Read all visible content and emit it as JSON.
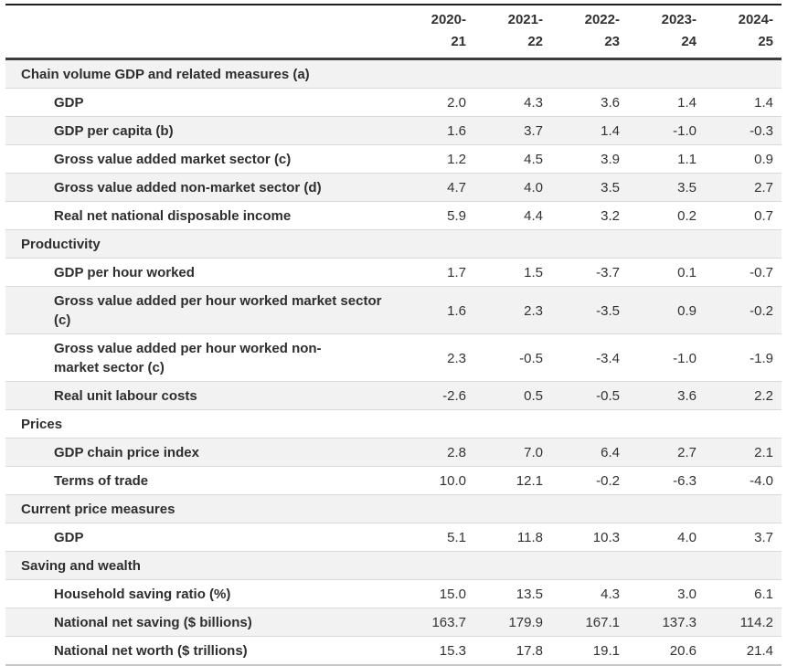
{
  "colors": {
    "top_rule": "#1f1f1f",
    "header_rule": "#3d3d3d",
    "row_divider": "#d9d9d9",
    "stripe_band": "#f2f2f2",
    "bottom_rule": "#c6c6c6",
    "text": "#333333"
  },
  "chart_data": {
    "type": "table",
    "columns": [
      "2020-21",
      "2021-22",
      "2022-23",
      "2023-24",
      "2024-25"
    ],
    "column_display": [
      "2020-\n21",
      "2021-\n22",
      "2022-\n23",
      "2023-\n24",
      "2024-\n25"
    ],
    "rows": [
      {
        "type": "section",
        "label": "Chain volume GDP and related measures (a)"
      },
      {
        "type": "data",
        "label": "GDP",
        "values": [
          "2.0",
          "4.3",
          "3.6",
          "1.4",
          "1.4"
        ]
      },
      {
        "type": "data",
        "label": "GDP per capita (b)",
        "values": [
          "1.6",
          "3.7",
          "1.4",
          "-1.0",
          "-0.3"
        ]
      },
      {
        "type": "data",
        "label": "Gross value added market sector (c)",
        "values": [
          "1.2",
          "4.5",
          "3.9",
          "1.1",
          "0.9"
        ]
      },
      {
        "type": "data",
        "label": "Gross value added non-market sector (d)",
        "values": [
          "4.7",
          "4.0",
          "3.5",
          "3.5",
          "2.7"
        ]
      },
      {
        "type": "data",
        "label": "Real net national disposable income",
        "values": [
          "5.9",
          "4.4",
          "3.2",
          "0.2",
          "0.7"
        ]
      },
      {
        "type": "section",
        "label": "Productivity"
      },
      {
        "type": "data",
        "label": "GDP per hour worked",
        "values": [
          "1.7",
          "1.5",
          "-3.7",
          "0.1",
          "-0.7"
        ]
      },
      {
        "type": "data",
        "label": "Gross value added per hour worked market sector (c)",
        "values": [
          "1.6",
          "2.3",
          "-3.5",
          "0.9",
          "-0.2"
        ]
      },
      {
        "type": "data",
        "label": "Gross value added per hour worked non-\nmarket sector (c)",
        "values": [
          "2.3",
          "-0.5",
          "-3.4",
          "-1.0",
          "-1.9"
        ]
      },
      {
        "type": "data",
        "label": "Real unit labour costs",
        "values": [
          "-2.6",
          "0.5",
          "-0.5",
          "3.6",
          "2.2"
        ]
      },
      {
        "type": "section",
        "label": "Prices"
      },
      {
        "type": "data",
        "label": "GDP chain price index",
        "values": [
          "2.8",
          "7.0",
          "6.4",
          "2.7",
          "2.1"
        ]
      },
      {
        "type": "data",
        "label": "Terms of trade",
        "values": [
          "10.0",
          "12.1",
          "-0.2",
          "-6.3",
          "-4.0"
        ]
      },
      {
        "type": "section",
        "label": "Current price measures"
      },
      {
        "type": "data",
        "label": "GDP",
        "values": [
          "5.1",
          "11.8",
          "10.3",
          "4.0",
          "3.7"
        ]
      },
      {
        "type": "section",
        "label": "Saving and wealth"
      },
      {
        "type": "data",
        "label": "Household saving ratio (%)",
        "values": [
          "15.0",
          "13.5",
          "4.3",
          "3.0",
          "6.1"
        ]
      },
      {
        "type": "data",
        "label": "National net saving ($ billions)",
        "values": [
          "163.7",
          "179.9",
          "167.1",
          "137.3",
          "114.2"
        ]
      },
      {
        "type": "data",
        "label": "National net worth ($ trillions)",
        "values": [
          "15.3",
          "17.8",
          "19.1",
          "20.6",
          "21.4"
        ]
      }
    ]
  }
}
